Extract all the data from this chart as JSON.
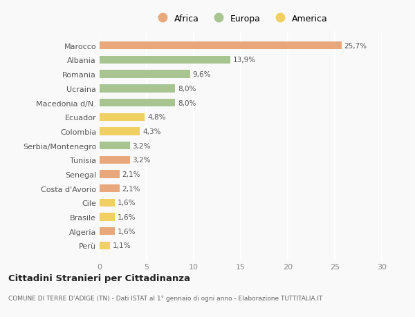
{
  "categories": [
    "Marocco",
    "Albania",
    "Romania",
    "Ucraina",
    "Macedonia d/N.",
    "Ecuador",
    "Colombia",
    "Serbia/Montenegro",
    "Tunisia",
    "Senegal",
    "Costa d'Avorio",
    "Cile",
    "Brasile",
    "Algeria",
    "Perù"
  ],
  "values": [
    25.7,
    13.9,
    9.6,
    8.0,
    8.0,
    4.8,
    4.3,
    3.2,
    3.2,
    2.1,
    2.1,
    1.6,
    1.6,
    1.6,
    1.1
  ],
  "labels": [
    "25,7%",
    "13,9%",
    "9,6%",
    "8,0%",
    "8,0%",
    "4,8%",
    "4,3%",
    "3,2%",
    "3,2%",
    "2,1%",
    "2,1%",
    "1,6%",
    "1,6%",
    "1,6%",
    "1,1%"
  ],
  "continent": [
    "Africa",
    "Europa",
    "Europa",
    "Europa",
    "Europa",
    "America",
    "America",
    "Europa",
    "Africa",
    "Africa",
    "Africa",
    "America",
    "America",
    "Africa",
    "America"
  ],
  "colors": {
    "Africa": "#E8A87C",
    "Europa": "#A8C490",
    "America": "#F0D060"
  },
  "xlim": [
    0,
    30
  ],
  "xticks": [
    0,
    5,
    10,
    15,
    20,
    25,
    30
  ],
  "title": "Cittadini Stranieri per Cittadinanza",
  "subtitle": "COMUNE DI TERRE D'ADIGE (TN) - Dati ISTAT al 1° gennaio di ogni anno - Elaborazione TUTTITALIA.IT",
  "bg_color": "#f9f9f9",
  "grid_color": "#ffffff"
}
